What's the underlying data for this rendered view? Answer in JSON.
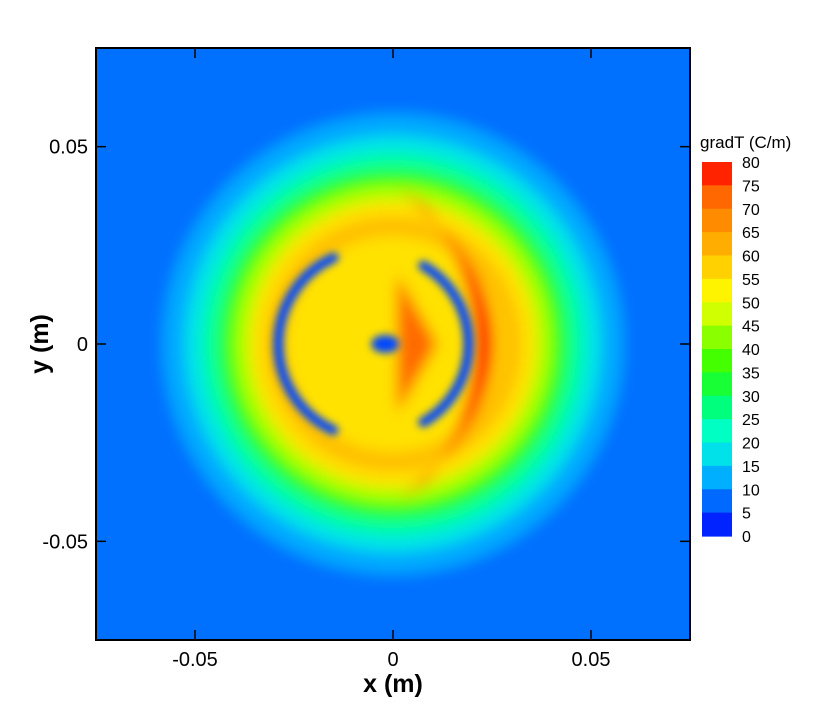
{
  "chart_data": {
    "type": "heatmap",
    "title": "",
    "xlabel": "x (m)",
    "ylabel": "y (m)",
    "xlim": [
      -0.075,
      0.075
    ],
    "ylim": [
      -0.075,
      0.075
    ],
    "x_ticks": [
      {
        "value": -0.05,
        "label": "-0.05"
      },
      {
        "value": 0,
        "label": "0"
      },
      {
        "value": 0.05,
        "label": "0.05"
      }
    ],
    "y_ticks": [
      {
        "value": 0.05,
        "label": "0.05"
      },
      {
        "value": 0,
        "label": "0"
      },
      {
        "value": -0.05,
        "label": "-0.05"
      }
    ],
    "grid": false,
    "legend": {
      "title": "gradT (C/m)",
      "placement": "right",
      "range": [
        0,
        80
      ],
      "levels": [
        {
          "value": 80,
          "label": "80"
        },
        {
          "value": 75,
          "label": "75"
        },
        {
          "value": 70,
          "label": "70"
        },
        {
          "value": 65,
          "label": "65"
        },
        {
          "value": 60,
          "label": "60"
        },
        {
          "value": 55,
          "label": "55"
        },
        {
          "value": 50,
          "label": "50"
        },
        {
          "value": 45,
          "label": "45"
        },
        {
          "value": 40,
          "label": "40"
        },
        {
          "value": 35,
          "label": "35"
        },
        {
          "value": 30,
          "label": "30"
        },
        {
          "value": 25,
          "label": "25"
        },
        {
          "value": 20,
          "label": "20"
        },
        {
          "value": 15,
          "label": "15"
        },
        {
          "value": 10,
          "label": "10"
        },
        {
          "value": 5,
          "label": "5"
        },
        {
          "value": 0,
          "label": "0"
        }
      ]
    },
    "colormap": [
      "#0000ff",
      "#0066ff",
      "#00ccff",
      "#00ffcc",
      "#00ff66",
      "#33ff00",
      "#99ff00",
      "#ffff00",
      "#ffcc00",
      "#ff9900",
      "#ff6600",
      "#ff0000"
    ],
    "field_features": [
      {
        "kind": "outer_ring",
        "center": [
          0,
          0
        ],
        "radius_m": 0.034,
        "value": 60
      },
      {
        "kind": "front_lobe_max",
        "x_range": [
          0.001,
          0.04
        ],
        "y_range": [
          -0.04,
          0.04
        ],
        "value": 78
      },
      {
        "kind": "inner_ring_min",
        "center": [
          -0.005,
          0
        ],
        "radius_m": 0.024,
        "value": 5
      },
      {
        "kind": "center_min",
        "center": [
          -0.002,
          0
        ],
        "value": 5
      },
      {
        "kind": "background",
        "value": 8
      }
    ]
  }
}
